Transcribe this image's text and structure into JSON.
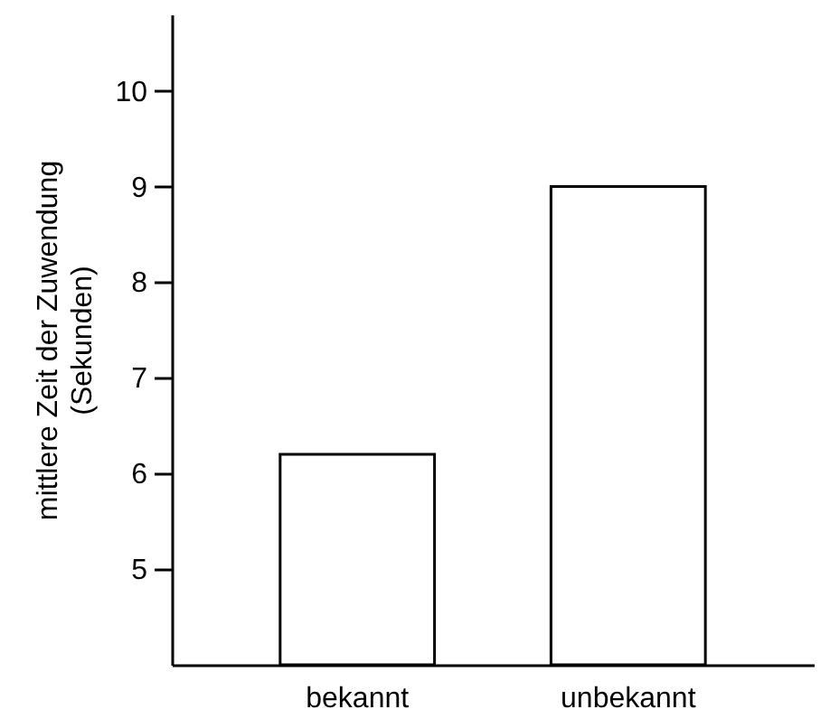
{
  "chart_data": {
    "type": "bar",
    "ylabel": "mittlere Zeit der Zuwendung (Sekunden)",
    "categories": [
      "bekannt",
      "unbekannt"
    ],
    "values": [
      6.2,
      9.0
    ],
    "color": "#ffffff",
    "ylim": [
      4,
      10.8
    ],
    "yticks": [
      5,
      6,
      7,
      8,
      9,
      10
    ],
    "grid": false
  }
}
